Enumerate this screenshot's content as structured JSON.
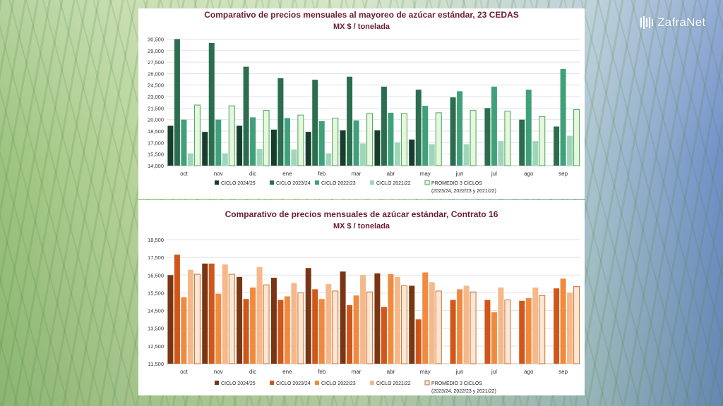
{
  "brand": {
    "name": "ZafraNet"
  },
  "chart_data": [
    {
      "type": "bar",
      "title": "Comparativo de precios mensuales al mayoreo de azúcar estándar, 23 CEDAS",
      "subtitle": "MX $ / tonelada",
      "xlabel": "",
      "ylabel": "",
      "ylim": [
        14000,
        31000
      ],
      "yticks": [
        14000,
        15500,
        17000,
        18500,
        20000,
        21500,
        23000,
        24500,
        26000,
        27500,
        29000,
        30500
      ],
      "ytick_labels": [
        "14,000",
        "15,500",
        "17,000",
        "18,500",
        "20,000",
        "21,500",
        "23,000",
        "24,500",
        "26,000",
        "27,500",
        "29,000",
        "30,500"
      ],
      "grid": true,
      "legend_position": "bottom",
      "categories": [
        "oct",
        "nov",
        "dic",
        "ene",
        "feb",
        "mar",
        "abr",
        "may",
        "jun",
        "jul",
        "ago",
        "sep"
      ],
      "series": [
        {
          "name": "CICLO 2024/25",
          "color": "#173d2b",
          "values": [
            19200,
            18400,
            19200,
            18700,
            18400,
            18600,
            18600,
            17400,
            null,
            null,
            null,
            null
          ]
        },
        {
          "name": "CICLO 2023/24",
          "color": "#2b6e4f",
          "values": [
            30500,
            30000,
            26900,
            25400,
            25200,
            25600,
            24300,
            23900,
            22900,
            21500,
            20000,
            19100
          ]
        },
        {
          "name": "CICLO 2022/23",
          "color": "#3fa07a",
          "values": [
            20000,
            20000,
            20300,
            20200,
            19800,
            19900,
            20900,
            21800,
            23700,
            24300,
            23900,
            26600
          ]
        },
        {
          "name": "CICLO 2021/22",
          "color": "#9fd6b9",
          "values": [
            15600,
            15600,
            16200,
            16100,
            15600,
            16900,
            17000,
            16800,
            16800,
            17200,
            17200,
            17900
          ]
        },
        {
          "name": "PROMEDIO 3 CICLOS",
          "name_line2": "(2023/24, 2022/23 y 2021/22)",
          "color": "#e6f7dc",
          "edge": "#46a363",
          "values": [
            21900,
            21800,
            21200,
            20600,
            20200,
            20800,
            20800,
            20900,
            21200,
            21100,
            20400,
            21300
          ]
        }
      ]
    },
    {
      "type": "bar",
      "title": "Comparativo de precios mensuales de azúcar estándar, Contrato 16",
      "subtitle": "MX $ / tonelada",
      "xlabel": "",
      "ylabel": "",
      "ylim": [
        11500,
        18500
      ],
      "yticks": [
        11500,
        12500,
        13500,
        14500,
        15500,
        16500,
        17500,
        18500
      ],
      "ytick_labels": [
        "11,500",
        "12,500",
        "13,500",
        "14,500",
        "15,500",
        "16,500",
        "17,500",
        "18,500"
      ],
      "grid": true,
      "legend_position": "bottom",
      "categories": [
        "oct",
        "nov",
        "dic",
        "ene",
        "feb",
        "mar",
        "abr",
        "may",
        "jun",
        "jul",
        "ago",
        "sep"
      ],
      "series": [
        {
          "name": "CICLO 2024/25",
          "color": "#7a3512",
          "values": [
            16500,
            17150,
            16400,
            16350,
            16900,
            16700,
            16600,
            15900,
            null,
            null,
            null,
            null
          ]
        },
        {
          "name": "CICLO 2023/24",
          "color": "#d0561a",
          "values": [
            17650,
            17150,
            15150,
            15100,
            15700,
            14800,
            14700,
            14000,
            15100,
            15100,
            15050,
            15750
          ]
        },
        {
          "name": "CICLO 2022/23",
          "color": "#ef8a3e",
          "values": [
            15250,
            15450,
            15800,
            15300,
            15150,
            15350,
            16550,
            16650,
            15700,
            14400,
            15200,
            16300
          ]
        },
        {
          "name": "CICLO 2021/22",
          "color": "#f6b889",
          "values": [
            16800,
            17100,
            16950,
            16050,
            16000,
            16500,
            16400,
            16100,
            15900,
            15800,
            15800,
            15500
          ]
        },
        {
          "name": "PROMEDIO 3 CICLOS",
          "name_line2": "(2023/24, 2022/23 y 2021/22)",
          "color": "#fde6d2",
          "edge": "#c3703a",
          "values": [
            16550,
            16550,
            15950,
            15500,
            15600,
            15550,
            15900,
            15600,
            15550,
            15100,
            15350,
            15850
          ]
        }
      ]
    }
  ]
}
